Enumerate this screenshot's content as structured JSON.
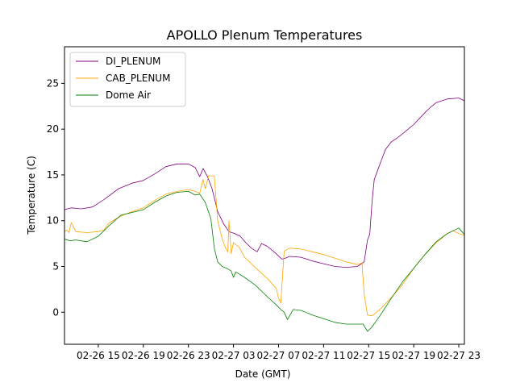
{
  "chart_data": {
    "type": "line",
    "title": "APOLLO Plenum Temperatures",
    "xlabel": "Date (GMT)",
    "ylabel": "Temperature (C)",
    "x_unit": "hours since 02-26 12:00 GMT",
    "xlim": [
      0,
      35.5
    ],
    "ylim": [
      -3.5,
      29
    ],
    "x_ticks": [
      {
        "x": 3,
        "label": "02-26 15"
      },
      {
        "x": 7,
        "label": "02-26 19"
      },
      {
        "x": 11,
        "label": "02-26 23"
      },
      {
        "x": 15,
        "label": "02-27 03"
      },
      {
        "x": 19,
        "label": "02-27 07"
      },
      {
        "x": 23,
        "label": "02-27 11"
      },
      {
        "x": 27,
        "label": "02-27 15"
      },
      {
        "x": 31,
        "label": "02-27 19"
      },
      {
        "x": 35,
        "label": "02-27 23"
      }
    ],
    "y_ticks": [
      0,
      5,
      10,
      15,
      20,
      25
    ],
    "legend_position": "top-left",
    "series": [
      {
        "name": "DI_PLENUM",
        "color": "#800080",
        "x": [
          0,
          0.6,
          1.5,
          2.5,
          3.5,
          4.8,
          6,
          7,
          8,
          9,
          10,
          11,
          11.6,
          12,
          12.3,
          12.7,
          13.1,
          13.6,
          14.1,
          14.6,
          15.1,
          15.6,
          16.1,
          16.6,
          17.1,
          17.5,
          18,
          18.6,
          19.3,
          19.6,
          20,
          21,
          22,
          23,
          24,
          25,
          26,
          26.6,
          26.9,
          27.1,
          27.3,
          27.5,
          27.8,
          28.1,
          28.5,
          29,
          29.5,
          30,
          31,
          32,
          32.5,
          33,
          34,
          35,
          35.5
        ],
        "y": [
          11.2,
          11.4,
          11.3,
          11.5,
          12.3,
          13.5,
          14.1,
          14.4,
          15.1,
          15.9,
          16.2,
          16.2,
          15.8,
          14.8,
          15.7,
          14.8,
          13.5,
          11.0,
          9.7,
          8.8,
          8.6,
          8.3,
          7.6,
          7.0,
          6.6,
          7.5,
          7.2,
          6.6,
          5.8,
          5.9,
          6.1,
          6.0,
          5.6,
          5.3,
          5.0,
          4.9,
          5.0,
          5.5,
          7.9,
          8.5,
          12.0,
          14.5,
          15.5,
          16.5,
          17.8,
          18.6,
          19.0,
          19.5,
          20.5,
          21.8,
          22.4,
          22.9,
          23.3,
          23.4,
          23.1
        ]
      },
      {
        "name": "CAB_PLENUM",
        "color": "#FFA500",
        "x": [
          0,
          0.2,
          0.4,
          0.6,
          1.0,
          2.0,
          3.0,
          3.5,
          4.0,
          5.0,
          6.0,
          7.0,
          8.0,
          9.0,
          10.0,
          11.0,
          11.6,
          12.0,
          12.3,
          12.5,
          12.8,
          13.1,
          13.3,
          13.6,
          14.0,
          14.3,
          14.5,
          14.6,
          14.8,
          15.0,
          15.5,
          16.0,
          17.0,
          18.0,
          18.8,
          19.0,
          19.2,
          19.5,
          20.0,
          21.0,
          22.0,
          23.0,
          24.0,
          25.0,
          26.0,
          26.4,
          26.6,
          26.9,
          27.3,
          28.0,
          29.0,
          30.0,
          31.0,
          32.0,
          33.0,
          34.0,
          34.5,
          35.0,
          35.5
        ],
        "y": [
          8.8,
          9.0,
          8.7,
          9.8,
          8.8,
          8.7,
          8.8,
          9.0,
          9.8,
          10.5,
          11.0,
          11.4,
          12.2,
          12.9,
          13.2,
          13.4,
          13.2,
          13.0,
          14.5,
          13.5,
          14.9,
          14.9,
          14.9,
          10.0,
          8.0,
          7.0,
          6.6,
          10.0,
          6.4,
          7.6,
          7.1,
          6.0,
          4.8,
          3.7,
          2.6,
          1.5,
          1.0,
          6.7,
          7.0,
          6.9,
          6.6,
          6.3,
          5.9,
          5.5,
          5.2,
          5.4,
          2.0,
          -0.3,
          -0.4,
          0.3,
          1.6,
          3.0,
          4.8,
          6.3,
          7.6,
          8.6,
          8.9,
          8.6,
          8.4
        ]
      },
      {
        "name": "Dome Air",
        "color": "#008000",
        "x": [
          0,
          0.5,
          1.0,
          2.0,
          3.0,
          4.0,
          5.0,
          6.0,
          7.0,
          8.0,
          9.0,
          10.0,
          11.0,
          11.6,
          12.0,
          12.5,
          13.0,
          13.3,
          13.6,
          14.0,
          14.4,
          14.8,
          15.0,
          15.2,
          15.6,
          16.0,
          17.0,
          18.0,
          18.8,
          19.2,
          19.5,
          19.8,
          20.3,
          21.0,
          22.0,
          23.0,
          24.0,
          25.0,
          26.0,
          26.5,
          26.9,
          27.3,
          28.0,
          29.0,
          30.0,
          31.0,
          32.0,
          33.0,
          34.0,
          34.5,
          35.0,
          35.5
        ],
        "y": [
          8.0,
          7.8,
          7.9,
          7.7,
          8.3,
          9.5,
          10.6,
          10.9,
          11.2,
          12.0,
          12.7,
          13.1,
          13.2,
          12.8,
          12.9,
          12.0,
          10.2,
          7.0,
          5.5,
          5.0,
          4.8,
          4.5,
          3.8,
          4.4,
          4.1,
          3.8,
          2.9,
          1.7,
          0.8,
          0.3,
          0.0,
          -0.8,
          0.3,
          0.2,
          -0.3,
          -0.7,
          -1.1,
          -1.3,
          -1.3,
          -1.3,
          -2.1,
          -1.6,
          -0.4,
          1.5,
          3.3,
          4.8,
          6.3,
          7.7,
          8.6,
          8.9,
          9.2,
          8.5
        ]
      }
    ]
  }
}
